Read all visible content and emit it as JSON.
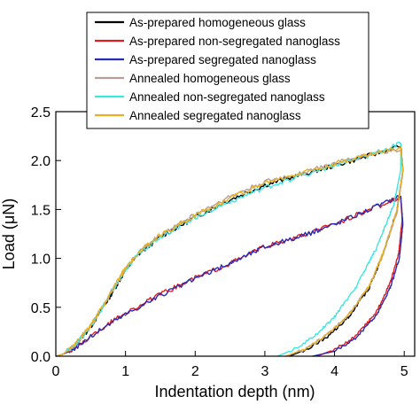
{
  "chart_data": {
    "type": "line",
    "title": "",
    "xlabel": "Indentation depth (nm)",
    "ylabel": "Load (μN)",
    "xlim": [
      0,
      5.15
    ],
    "ylim": [
      0,
      2.5
    ],
    "xticks": [
      0,
      1,
      2,
      3,
      4,
      5
    ],
    "xtick_labels": [
      "0",
      "1",
      "2",
      "3",
      "4",
      "5"
    ],
    "yticks": [
      0,
      0.5,
      1.0,
      1.5,
      2.0,
      2.5
    ],
    "ytick_labels": [
      "0.0",
      "0.5",
      "1.0",
      "1.5",
      "2.0",
      "2.5"
    ],
    "grid": false,
    "legend_position": "top",
    "series": [
      {
        "name": "As-prepared homogeneous glass",
        "color": "#000000",
        "loading": [
          [
            0,
            0
          ],
          [
            0.1,
            0.02
          ],
          [
            0.25,
            0.09
          ],
          [
            0.5,
            0.3
          ],
          [
            0.75,
            0.58
          ],
          [
            1.0,
            0.88
          ],
          [
            1.2,
            1.05
          ],
          [
            1.5,
            1.22
          ],
          [
            2.0,
            1.42
          ],
          [
            2.5,
            1.6
          ],
          [
            3.0,
            1.75
          ],
          [
            3.5,
            1.85
          ],
          [
            4.0,
            1.95
          ],
          [
            4.5,
            2.05
          ],
          [
            4.95,
            2.15
          ]
        ],
        "unloading": [
          [
            4.95,
            2.15
          ],
          [
            4.98,
            1.9
          ],
          [
            4.9,
            1.5
          ],
          [
            4.7,
            1.05
          ],
          [
            4.5,
            0.7
          ],
          [
            4.2,
            0.4
          ],
          [
            3.9,
            0.2
          ],
          [
            3.6,
            0.07
          ],
          [
            3.35,
            0
          ]
        ]
      },
      {
        "name": "As-prepared non-segregated nanoglass",
        "color": "#dd1f1f",
        "loading": [
          [
            0,
            0
          ],
          [
            0.1,
            0.02
          ],
          [
            0.25,
            0.07
          ],
          [
            0.5,
            0.2
          ],
          [
            0.75,
            0.33
          ],
          [
            1.0,
            0.44
          ],
          [
            1.5,
            0.63
          ],
          [
            2.0,
            0.8
          ],
          [
            2.5,
            0.95
          ],
          [
            3.0,
            1.12
          ],
          [
            3.5,
            1.22
          ],
          [
            4.0,
            1.35
          ],
          [
            4.5,
            1.5
          ],
          [
            4.95,
            1.62
          ]
        ],
        "unloading": [
          [
            4.95,
            1.62
          ],
          [
            4.97,
            1.4
          ],
          [
            4.92,
            1.05
          ],
          [
            4.8,
            0.75
          ],
          [
            4.6,
            0.45
          ],
          [
            4.3,
            0.2
          ],
          [
            4.0,
            0.07
          ],
          [
            3.75,
            0
          ]
        ]
      },
      {
        "name": "As-prepared segregated nanoglass",
        "color": "#2a2ab8",
        "loading": [
          [
            0,
            0
          ],
          [
            0.1,
            0.02
          ],
          [
            0.25,
            0.07
          ],
          [
            0.5,
            0.2
          ],
          [
            0.75,
            0.32
          ],
          [
            1.0,
            0.43
          ],
          [
            1.5,
            0.62
          ],
          [
            2.0,
            0.79
          ],
          [
            2.5,
            0.95
          ],
          [
            3.0,
            1.12
          ],
          [
            3.5,
            1.22
          ],
          [
            4.0,
            1.35
          ],
          [
            4.5,
            1.5
          ],
          [
            4.95,
            1.64
          ]
        ],
        "unloading": [
          [
            4.95,
            1.64
          ],
          [
            4.98,
            1.35
          ],
          [
            4.93,
            1.0
          ],
          [
            4.8,
            0.7
          ],
          [
            4.6,
            0.42
          ],
          [
            4.3,
            0.18
          ],
          [
            4.0,
            0.05
          ],
          [
            3.68,
            0
          ]
        ]
      },
      {
        "name": "Annealed homogeneous glass",
        "color": "#b79e98",
        "loading": [
          [
            0,
            0
          ],
          [
            0.1,
            0.02
          ],
          [
            0.25,
            0.1
          ],
          [
            0.5,
            0.31
          ],
          [
            0.75,
            0.6
          ],
          [
            1.0,
            0.9
          ],
          [
            1.2,
            1.07
          ],
          [
            1.5,
            1.24
          ],
          [
            2.0,
            1.45
          ],
          [
            2.5,
            1.63
          ],
          [
            3.0,
            1.78
          ],
          [
            3.5,
            1.87
          ],
          [
            4.0,
            1.97
          ],
          [
            4.5,
            2.06
          ],
          [
            4.95,
            2.12
          ]
        ],
        "unloading": [
          [
            4.95,
            2.12
          ],
          [
            4.98,
            1.88
          ],
          [
            4.9,
            1.48
          ],
          [
            4.7,
            1.05
          ],
          [
            4.5,
            0.72
          ],
          [
            4.2,
            0.42
          ],
          [
            3.9,
            0.22
          ],
          [
            3.6,
            0.08
          ],
          [
            3.3,
            0
          ]
        ]
      },
      {
        "name": "Annealed non-segregated nanoglass",
        "color": "#3ee6e0",
        "loading": [
          [
            0,
            0
          ],
          [
            0.1,
            0.02
          ],
          [
            0.25,
            0.1
          ],
          [
            0.5,
            0.3
          ],
          [
            0.75,
            0.59
          ],
          [
            1.0,
            0.89
          ],
          [
            1.2,
            1.06
          ],
          [
            1.5,
            1.22
          ],
          [
            2.0,
            1.42
          ],
          [
            2.5,
            1.58
          ],
          [
            3.0,
            1.72
          ],
          [
            3.5,
            1.84
          ],
          [
            4.0,
            1.95
          ],
          [
            4.5,
            2.05
          ],
          [
            4.95,
            2.18
          ]
        ],
        "unloading": [
          [
            4.95,
            2.18
          ],
          [
            4.95,
            1.9
          ],
          [
            4.85,
            1.55
          ],
          [
            4.6,
            1.1
          ],
          [
            4.3,
            0.7
          ],
          [
            4.0,
            0.4
          ],
          [
            3.7,
            0.2
          ],
          [
            3.45,
            0.08
          ],
          [
            3.18,
            0
          ]
        ]
      },
      {
        "name": "Annealed segregated nanoglass",
        "color": "#e8b022",
        "loading": [
          [
            0,
            0
          ],
          [
            0.1,
            0.02
          ],
          [
            0.25,
            0.1
          ],
          [
            0.5,
            0.31
          ],
          [
            0.75,
            0.6
          ],
          [
            1.0,
            0.9
          ],
          [
            1.2,
            1.07
          ],
          [
            1.5,
            1.24
          ],
          [
            2.0,
            1.44
          ],
          [
            2.5,
            1.62
          ],
          [
            3.0,
            1.77
          ],
          [
            3.5,
            1.87
          ],
          [
            4.0,
            1.97
          ],
          [
            4.5,
            2.06
          ],
          [
            4.95,
            2.13
          ]
        ],
        "unloading": [
          [
            4.95,
            2.13
          ],
          [
            4.98,
            1.9
          ],
          [
            4.9,
            1.5
          ],
          [
            4.7,
            1.06
          ],
          [
            4.5,
            0.72
          ],
          [
            4.2,
            0.42
          ],
          [
            3.9,
            0.22
          ],
          [
            3.6,
            0.08
          ],
          [
            3.3,
            0
          ]
        ]
      }
    ]
  }
}
